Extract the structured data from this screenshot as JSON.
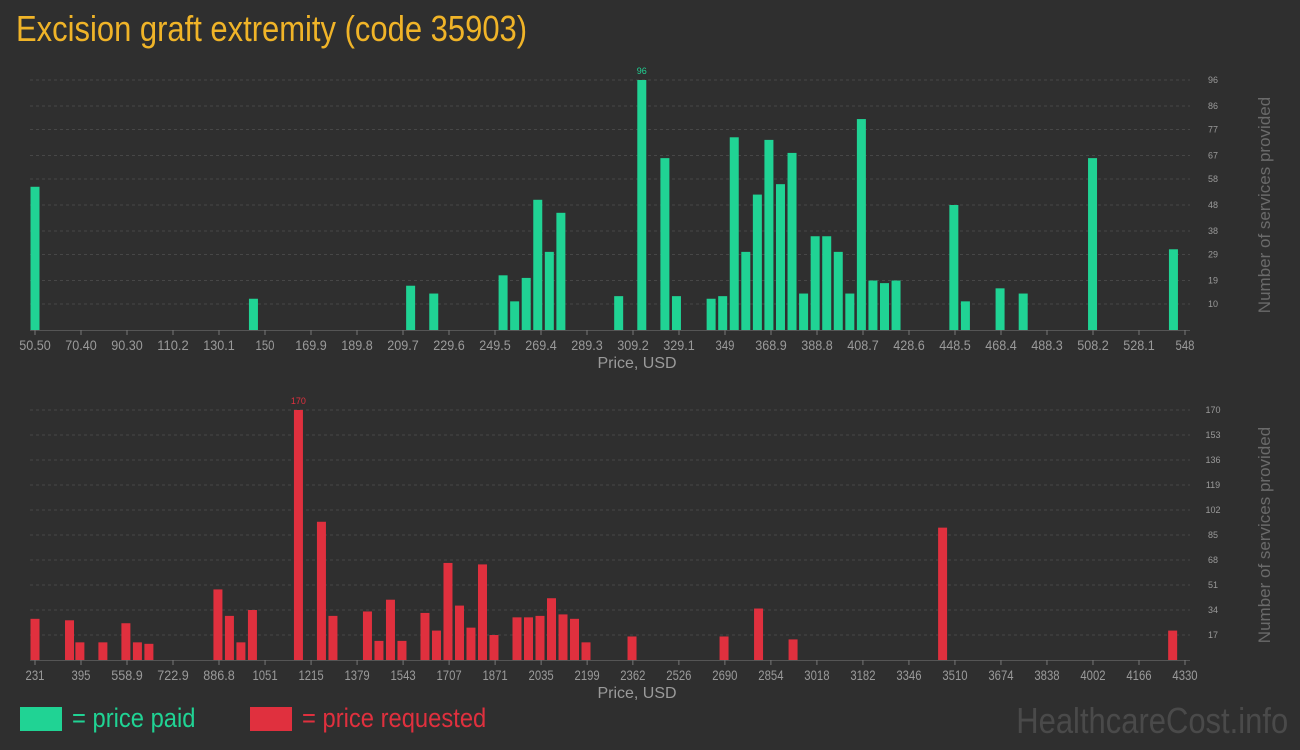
{
  "title": "Excision graft extremity (code 35903)",
  "legend": {
    "paid_label": "= price paid",
    "requested_label": "= price requested"
  },
  "watermark": "HealthcareCost.info",
  "colors": {
    "paid": "#20d394",
    "requested": "#e0303e",
    "background": "#2f2f2f",
    "grid": "#474747",
    "tick_text": "#9a9a9a",
    "title": "#f0b428"
  },
  "chart_data": [
    {
      "type": "bar",
      "series_name": "price paid",
      "xlabel": "Price, USD",
      "ylabel": "Number of services provided",
      "ylim": [
        0,
        96
      ],
      "y_ticks": [
        10,
        19,
        29,
        38,
        48,
        58,
        67,
        77,
        86,
        96
      ],
      "x_ticks": [
        "50.50",
        "70.40",
        "90.30",
        "110.2",
        "130.1",
        "150",
        "169.9",
        "189.8",
        "209.7",
        "229.6",
        "249.5",
        "269.4",
        "289.3",
        "309.2",
        "329.1",
        "349",
        "368.9",
        "388.8",
        "408.7",
        "428.6",
        "448.5",
        "468.4",
        "488.3",
        "508.2",
        "528.1",
        "548"
      ],
      "x_tick_values": [
        50.5,
        70.4,
        90.3,
        110.2,
        130.1,
        150,
        169.9,
        189.8,
        209.7,
        229.6,
        249.5,
        269.4,
        289.3,
        309.2,
        329.1,
        349,
        368.9,
        388.8,
        408.7,
        428.6,
        448.5,
        468.4,
        488.3,
        508.2,
        528.1,
        548
      ],
      "xlim": [
        50.5,
        548
      ],
      "peak_label": "96",
      "points": [
        {
          "x": 50.5,
          "y": 55
        },
        {
          "x": 145,
          "y": 12
        },
        {
          "x": 213,
          "y": 17
        },
        {
          "x": 223,
          "y": 14
        },
        {
          "x": 253,
          "y": 21
        },
        {
          "x": 258,
          "y": 11
        },
        {
          "x": 263,
          "y": 20
        },
        {
          "x": 268,
          "y": 50
        },
        {
          "x": 273,
          "y": 30
        },
        {
          "x": 278,
          "y": 45
        },
        {
          "x": 303,
          "y": 13
        },
        {
          "x": 313,
          "y": 96
        },
        {
          "x": 323,
          "y": 66
        },
        {
          "x": 328,
          "y": 13
        },
        {
          "x": 343,
          "y": 12
        },
        {
          "x": 348,
          "y": 13
        },
        {
          "x": 353,
          "y": 74
        },
        {
          "x": 358,
          "y": 30
        },
        {
          "x": 363,
          "y": 52
        },
        {
          "x": 368,
          "y": 73
        },
        {
          "x": 373,
          "y": 56
        },
        {
          "x": 378,
          "y": 68
        },
        {
          "x": 383,
          "y": 14
        },
        {
          "x": 388,
          "y": 36
        },
        {
          "x": 393,
          "y": 36
        },
        {
          "x": 398,
          "y": 30
        },
        {
          "x": 403,
          "y": 14
        },
        {
          "x": 408,
          "y": 81
        },
        {
          "x": 413,
          "y": 19
        },
        {
          "x": 418,
          "y": 18
        },
        {
          "x": 423,
          "y": 19
        },
        {
          "x": 448,
          "y": 48
        },
        {
          "x": 453,
          "y": 11
        },
        {
          "x": 468,
          "y": 16
        },
        {
          "x": 478,
          "y": 14
        },
        {
          "x": 508,
          "y": 66
        },
        {
          "x": 543,
          "y": 31
        }
      ]
    },
    {
      "type": "bar",
      "series_name": "price requested",
      "xlabel": "Price, USD",
      "ylabel": "Number of services provided",
      "ylim": [
        0,
        170
      ],
      "y_ticks": [
        17,
        34,
        51,
        68,
        85,
        102,
        119,
        136,
        153,
        170
      ],
      "x_ticks": [
        "231",
        "395",
        "558.9",
        "722.9",
        "886.8",
        "1051",
        "1215",
        "1379",
        "1543",
        "1707",
        "1871",
        "2035",
        "2199",
        "2362",
        "2526",
        "2690",
        "2854",
        "3018",
        "3182",
        "3346",
        "3510",
        "3674",
        "3838",
        "4002",
        "4166",
        "4330"
      ],
      "x_tick_values": [
        231,
        395,
        558.9,
        722.9,
        886.8,
        1051,
        1215,
        1379,
        1543,
        1707,
        1871,
        2035,
        2199,
        2362,
        2526,
        2690,
        2854,
        3018,
        3182,
        3346,
        3510,
        3674,
        3838,
        4002,
        4166,
        4330
      ],
      "xlim": [
        231,
        4330
      ],
      "peak_label": "170",
      "points": [
        {
          "x": 231,
          "y": 28
        },
        {
          "x": 354,
          "y": 27
        },
        {
          "x": 391,
          "y": 12
        },
        {
          "x": 473,
          "y": 12
        },
        {
          "x": 555,
          "y": 25
        },
        {
          "x": 596,
          "y": 12
        },
        {
          "x": 637,
          "y": 11
        },
        {
          "x": 883,
          "y": 48
        },
        {
          "x": 924,
          "y": 30
        },
        {
          "x": 965,
          "y": 12
        },
        {
          "x": 1006,
          "y": 34
        },
        {
          "x": 1170,
          "y": 170
        },
        {
          "x": 1252,
          "y": 94
        },
        {
          "x": 1293,
          "y": 30
        },
        {
          "x": 1416,
          "y": 33
        },
        {
          "x": 1457,
          "y": 13
        },
        {
          "x": 1498,
          "y": 41
        },
        {
          "x": 1539,
          "y": 13
        },
        {
          "x": 1621,
          "y": 32
        },
        {
          "x": 1662,
          "y": 20
        },
        {
          "x": 1703,
          "y": 66
        },
        {
          "x": 1744,
          "y": 37
        },
        {
          "x": 1785,
          "y": 22
        },
        {
          "x": 1826,
          "y": 65
        },
        {
          "x": 1867,
          "y": 17
        },
        {
          "x": 1949,
          "y": 29
        },
        {
          "x": 1990,
          "y": 29
        },
        {
          "x": 2031,
          "y": 30
        },
        {
          "x": 2072,
          "y": 42
        },
        {
          "x": 2113,
          "y": 31
        },
        {
          "x": 2154,
          "y": 28
        },
        {
          "x": 2195,
          "y": 12
        },
        {
          "x": 2359,
          "y": 16
        },
        {
          "x": 2687,
          "y": 16
        },
        {
          "x": 2810,
          "y": 35
        },
        {
          "x": 2933,
          "y": 14
        },
        {
          "x": 3466,
          "y": 90
        },
        {
          "x": 4286,
          "y": 20
        }
      ]
    }
  ]
}
